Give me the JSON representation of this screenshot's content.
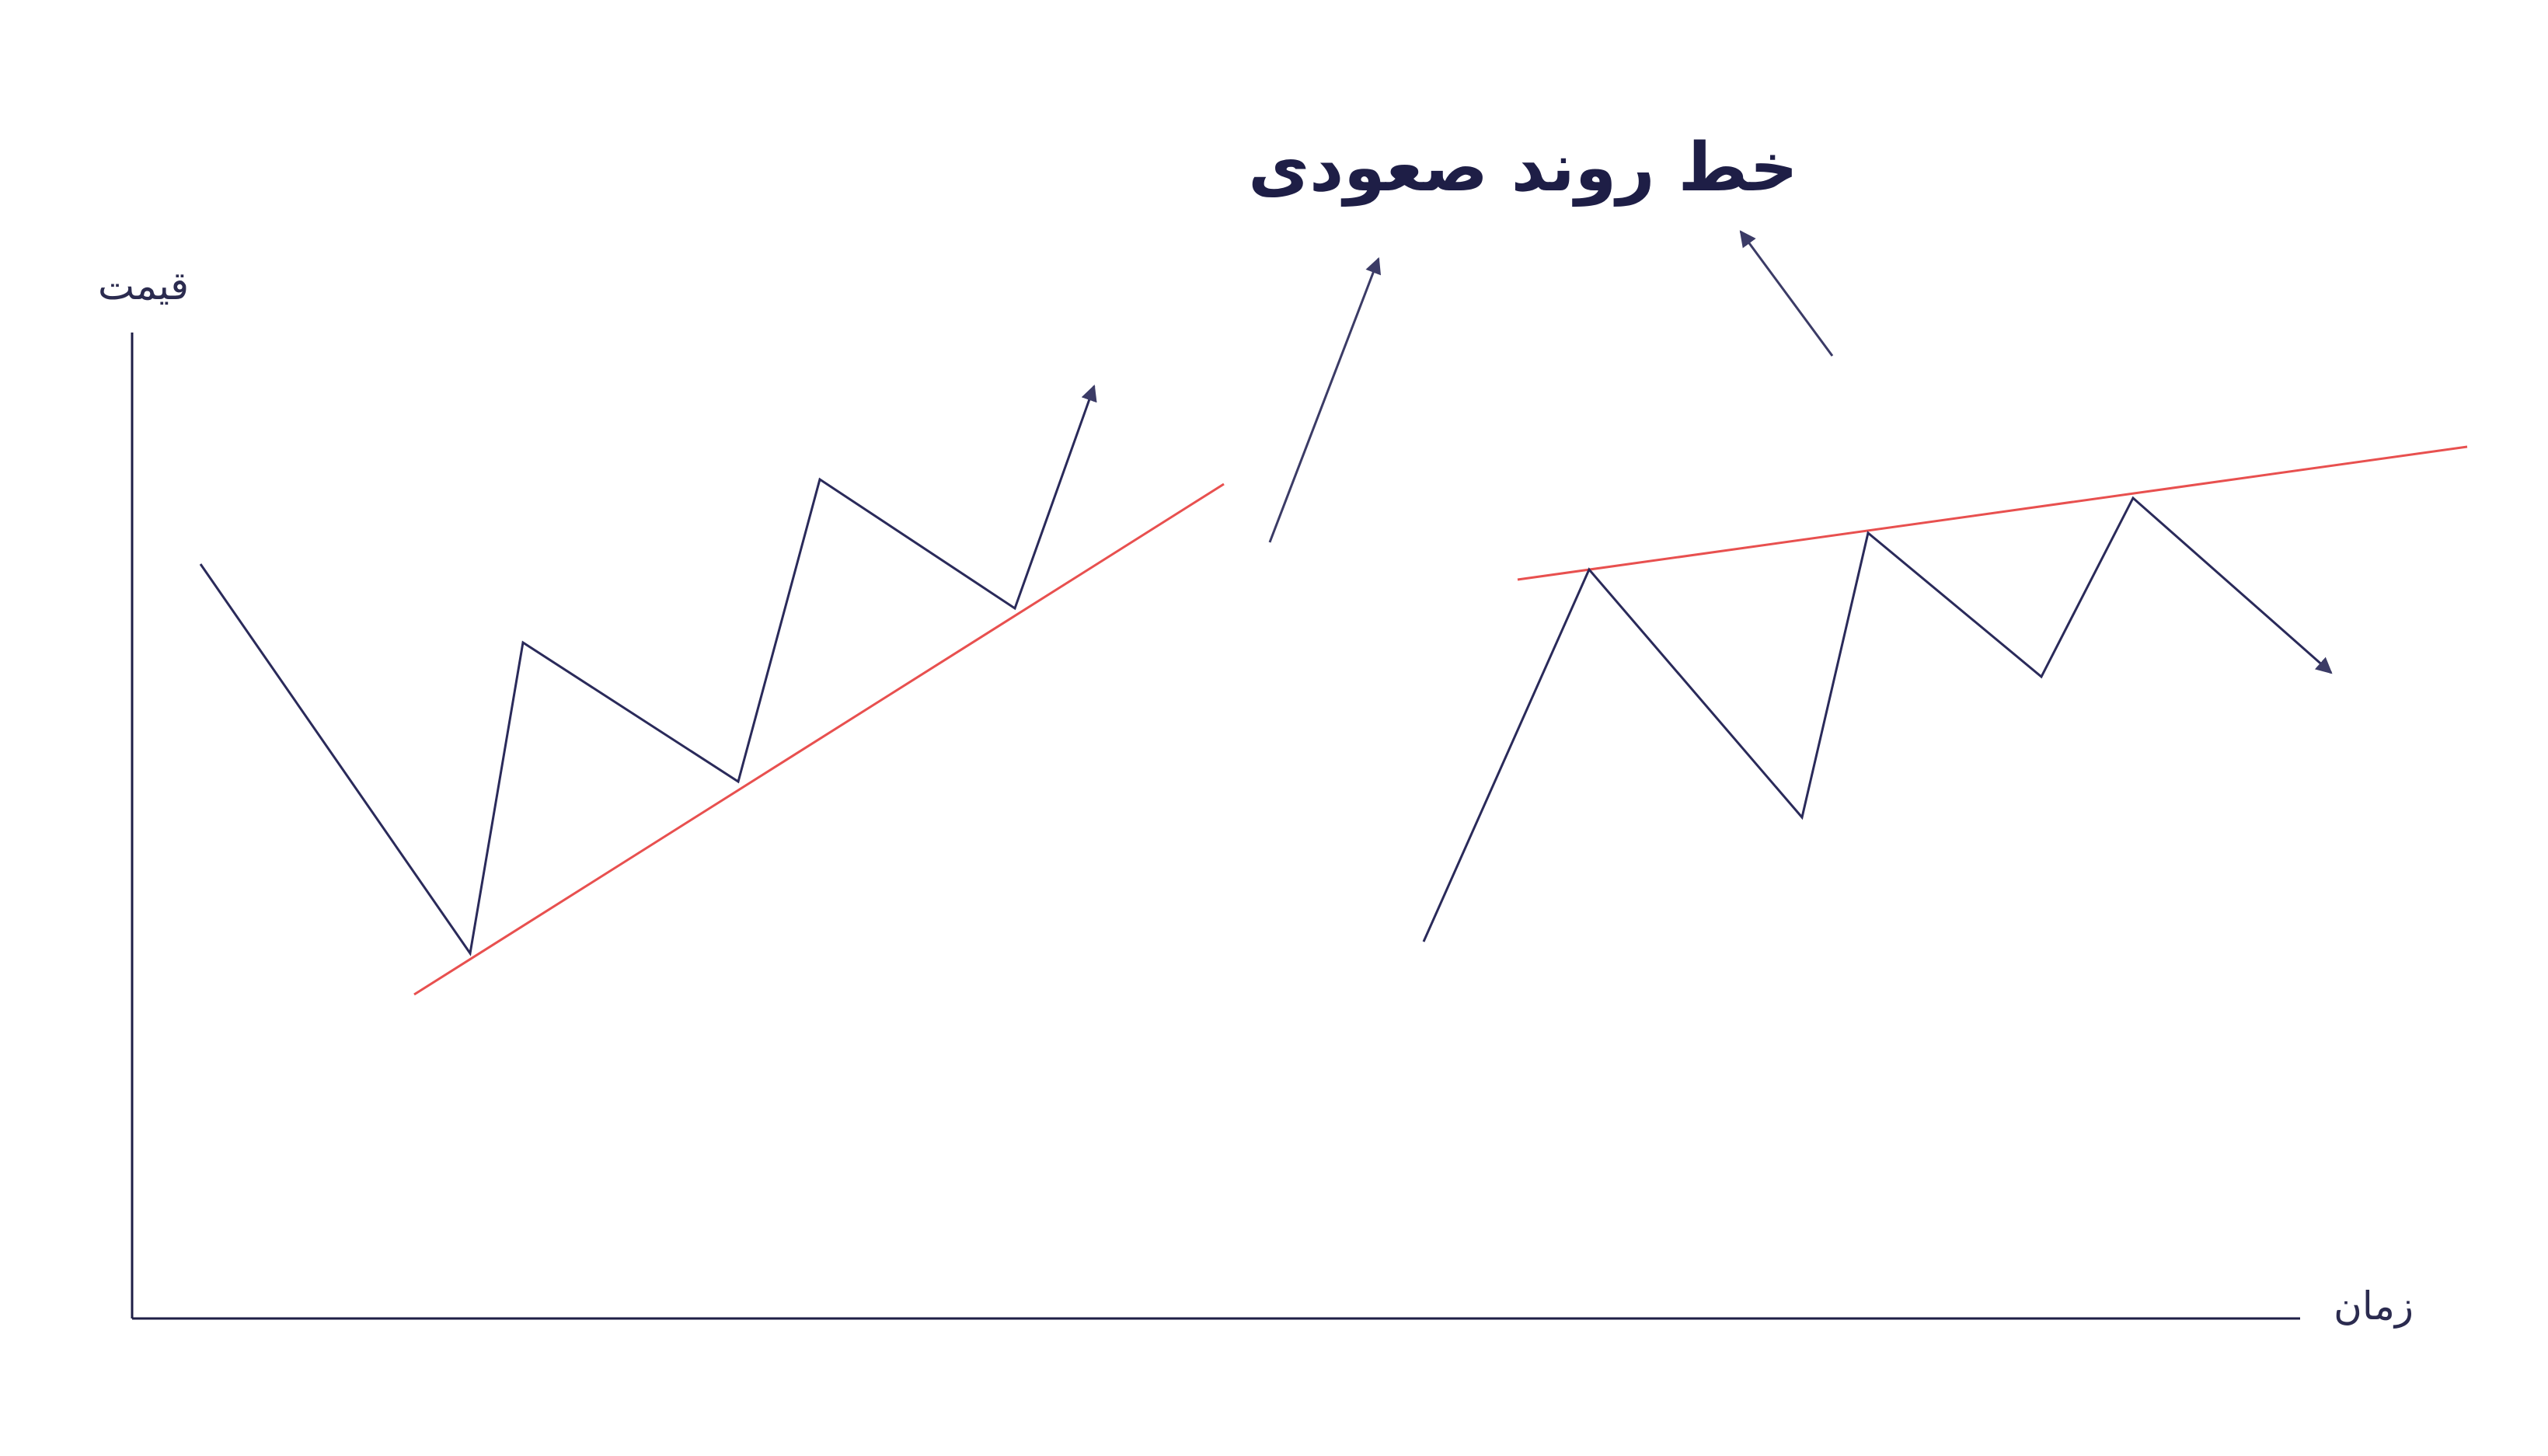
{
  "title": "خط روند صعودی",
  "axes": {
    "y_label": "قیمت",
    "x_label": "زمان"
  },
  "colors": {
    "price_line": "#2a2a5a",
    "trendline": "#e8504f",
    "axis": "#1e1e46",
    "arrow": "#3b3b66",
    "background": "#ffffff"
  }
}
